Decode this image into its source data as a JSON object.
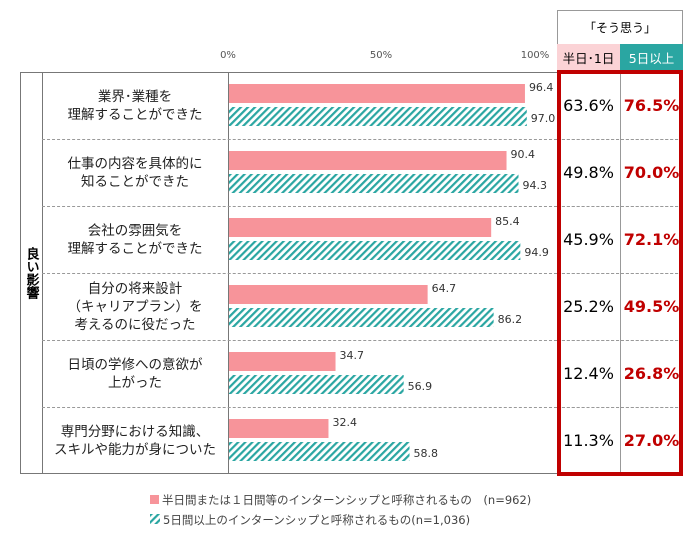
{
  "header": {
    "group": "「そう思う」",
    "col1": "半日･1日",
    "col2": "5日以上",
    "col1_bg": "#fbd3d6",
    "col2_bg": "#2aa6a2"
  },
  "side_label": "良い影響",
  "chart_data": {
    "type": "bar",
    "orientation": "horizontal",
    "xlim": [
      0,
      100
    ],
    "ticks": [
      "0%",
      "50%",
      "100%"
    ],
    "categories": [
      "業界･業種を\n理解することができた",
      "仕事の内容を具体的に\n知ることができた",
      "会社の雰囲気を\n理解することができた",
      "自分の将来設計\n（キャリアプラン）を\n考えるのに役だった",
      "日頃の学修への意欲が\n上がった",
      "専門分野における知識、\nスキルや能力が身についた"
    ],
    "series": [
      {
        "name": "半日間または１日間等のインターンシップと呼称されるもの　(n=962)",
        "color": "#f7949a",
        "values": [
          96.4,
          90.4,
          85.4,
          64.7,
          34.7,
          32.4
        ],
        "labels": [
          "96.4",
          "90.4",
          "85.4",
          "64.7",
          "34.7",
          "32.4"
        ]
      },
      {
        "name": "5日間以上のインターンシップと呼称されるもの(n=1,036)",
        "color": "#2aa6a2",
        "pattern": "diagonal-hatch",
        "values": [
          97.0,
          94.3,
          94.9,
          86.2,
          56.9,
          58.8
        ],
        "labels": [
          "97.0",
          "94.3",
          "94.9",
          "86.2",
          "56.9",
          "58.8"
        ]
      }
    ],
    "table": {
      "col1": [
        "63.6%",
        "49.8%",
        "45.9%",
        "25.2%",
        "12.4%",
        "11.3%"
      ],
      "col2": [
        "76.5%",
        "70.0%",
        "72.1%",
        "49.5%",
        "26.8%",
        "27.0%"
      ]
    },
    "highlight_color": "#c00000"
  }
}
